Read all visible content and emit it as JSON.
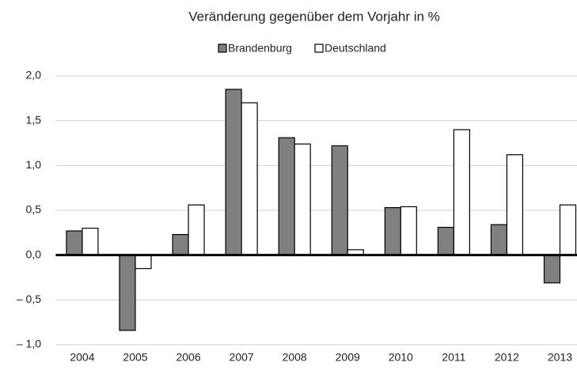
{
  "chart_data": {
    "type": "bar",
    "title": "Veränderung gegenüber dem Vorjahr in %",
    "categories": [
      "2004",
      "2005",
      "2006",
      "2007",
      "2008",
      "2009",
      "2010",
      "2011",
      "2012",
      "2013"
    ],
    "series": [
      {
        "name": "Brandenburg",
        "color": "#808080",
        "values": [
          0.27,
          -0.84,
          0.23,
          1.85,
          1.31,
          1.22,
          0.53,
          0.31,
          0.34,
          -0.31
        ]
      },
      {
        "name": "Deutschland",
        "color": "#ffffff",
        "values": [
          0.3,
          -0.15,
          0.56,
          1.7,
          1.24,
          0.06,
          0.54,
          1.4,
          1.12,
          0.56
        ]
      }
    ],
    "ylim": [
      -1.0,
      2.0
    ],
    "yticks": [
      {
        "value": -1.0,
        "label": "– 1,0"
      },
      {
        "value": -0.5,
        "label": "– 0,5"
      },
      {
        "value": 0.0,
        "label": "0,0"
      },
      {
        "value": 0.5,
        "label": "0,5"
      },
      {
        "value": 1.0,
        "label": "1,0"
      },
      {
        "value": 1.5,
        "label": "1,5"
      },
      {
        "value": 2.0,
        "label": "2,0"
      }
    ],
    "grid": true
  }
}
